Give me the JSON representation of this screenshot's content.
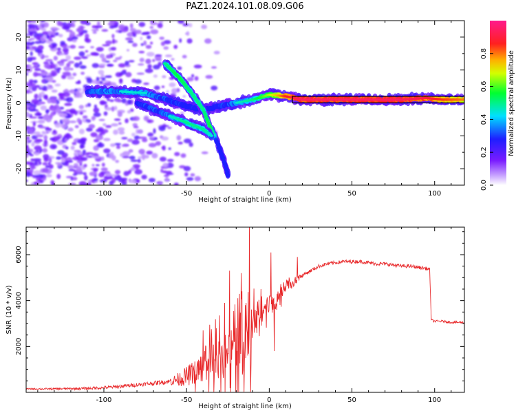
{
  "title": "PAZ1.2024.101.08.09.G06",
  "colors": {
    "snr_line": "#e8292b",
    "plasma_background": "#ffffff"
  },
  "chart_data": [
    {
      "type": "heatmap",
      "name": "spectrogram",
      "xlabel": "Height of straight line (km)",
      "ylabel": "Frequency (Hz)",
      "xlim": [
        -147,
        118
      ],
      "ylim": [
        -25,
        25
      ],
      "xticks": [
        -100,
        -50,
        0,
        50,
        100
      ],
      "yticks": [
        -20,
        -10,
        0,
        10,
        20
      ],
      "colorbar": {
        "label": "Normalized spectral amplitude",
        "range": [
          0,
          1
        ],
        "ticks": [
          0.0,
          0.2,
          0.4,
          0.6,
          0.8
        ],
        "colormap": "white-purple-blue-cyan-green-yellow-red-magenta"
      },
      "features": [
        {
          "description": "main tone",
          "x": [
            -110,
            -90,
            -75,
            -65,
            -50,
            -40,
            -30,
            -20,
            -10,
            0,
            10,
            20,
            50,
            80,
            95,
            105,
            118
          ],
          "y": [
            3.5,
            3.5,
            3,
            1.5,
            -1,
            -2,
            -1,
            0,
            1,
            2.5,
            2,
            1,
            1,
            1,
            1.5,
            1,
            1
          ],
          "amplitude": [
            0.4,
            0.45,
            0.45,
            0.4,
            0.35,
            0.35,
            0.35,
            0.45,
            0.5,
            0.65,
            0.85,
            0.95,
            0.95,
            0.95,
            0.9,
            0.85,
            0.8
          ]
        },
        {
          "description": "descending branch",
          "x": [
            -63,
            -55,
            -47,
            -40,
            -36,
            -33,
            -30,
            -27,
            -25
          ],
          "y": [
            12,
            8,
            3,
            -2,
            -7,
            -10,
            -14,
            -18,
            -22
          ],
          "amplitude": [
            0.5,
            0.55,
            0.5,
            0.5,
            0.55,
            0.45,
            0.35,
            0.3,
            0.25
          ]
        },
        {
          "description": "lower multipath branch",
          "x": [
            -80,
            -70,
            -60,
            -50,
            -45,
            -40,
            -35
          ],
          "y": [
            0,
            -2,
            -4,
            -6,
            -7,
            -8,
            -10
          ],
          "amplitude": [
            0.35,
            0.4,
            0.45,
            0.5,
            0.5,
            0.5,
            0.45
          ]
        }
      ]
    },
    {
      "type": "line",
      "name": "snr",
      "xlabel": "Height of straight line (km)",
      "ylabel": "SNR (10 * v/v)",
      "xlim": [
        -147,
        118
      ],
      "ylim": [
        0,
        7200
      ],
      "xticks": [
        -100,
        -50,
        0,
        50,
        100
      ],
      "yticks": [
        2000,
        4000,
        6000
      ],
      "series": [
        {
          "x": [
            -147,
            -130,
            -110,
            -100,
            -90,
            -80,
            -70,
            -60,
            -55,
            -50,
            -45,
            -40,
            -35,
            -30,
            -25,
            -20,
            -15,
            -12,
            -10,
            -8,
            -5,
            -2,
            0,
            3,
            5,
            8,
            10,
            15,
            20,
            25,
            30,
            35,
            40,
            45,
            50,
            55,
            60,
            65,
            70,
            75,
            80,
            85,
            90,
            95,
            97,
            98,
            100,
            105,
            110,
            118
          ],
          "y": [
            150,
            150,
            170,
            200,
            260,
            330,
            400,
            480,
            560,
            700,
            900,
            1100,
            1300,
            1500,
            1700,
            1900,
            2000,
            2500,
            3000,
            3300,
            3600,
            3700,
            3800,
            3900,
            4200,
            4500,
            4600,
            4800,
            5100,
            5300,
            5500,
            5600,
            5650,
            5700,
            5700,
            5700,
            5650,
            5600,
            5600,
            5550,
            5500,
            5500,
            5450,
            5400,
            5350,
            3150,
            3100,
            3100,
            3050,
            3050
          ],
          "spikes": [
            {
              "x": -40,
              "y": 2700
            },
            {
              "x": -36,
              "y": 2950
            },
            {
              "x": -32,
              "y": 2800
            },
            {
              "x": -27,
              "y": 3900
            },
            {
              "x": -24,
              "y": 5300
            },
            {
              "x": -19,
              "y": 4100
            },
            {
              "x": -17,
              "y": 5200
            },
            {
              "x": -14,
              "y": 3900
            },
            {
              "x": -12,
              "y": 7200
            },
            {
              "x": -9,
              "y": 2600
            },
            {
              "x": -5,
              "y": 4500
            },
            {
              "x": 1,
              "y": 6100
            },
            {
              "x": 3,
              "y": 1800
            },
            {
              "x": 8,
              "y": 4200
            },
            {
              "x": 12,
              "y": 5000
            },
            {
              "x": 17,
              "y": 5900
            }
          ]
        }
      ]
    }
  ]
}
